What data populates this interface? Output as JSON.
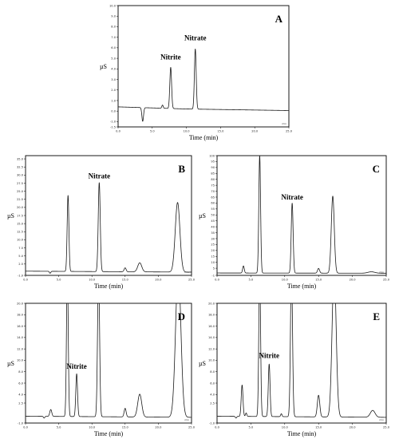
{
  "chart_data": [
    {
      "type": "line",
      "panel_label": "A",
      "xlabel": "Time (min)",
      "ylabel": "µS",
      "x_unit": "min",
      "xlim": [
        0.0,
        25.0
      ],
      "ylim": [
        -1.5,
        10.0
      ],
      "x_ticks": [
        "0.0",
        "5.0",
        "10.0",
        "15.0",
        "20.0",
        "25.0"
      ],
      "y_ticks": [
        "-1.5",
        "-1.0",
        "0.0",
        "1.0",
        "2.0",
        "3.0",
        "4.0",
        "5.0",
        "6.0",
        "7.0",
        "8.0",
        "9.0",
        "10.0"
      ],
      "baseline": [
        [
          0,
          0.4
        ],
        [
          2.5,
          0.35
        ],
        [
          5,
          0.3
        ],
        [
          10,
          0.2
        ],
        [
          15,
          0.15
        ],
        [
          20,
          0.1
        ],
        [
          25,
          0.05
        ]
      ],
      "peaks": [
        {
          "x": 3.6,
          "height": -1.3,
          "width": 0.12
        },
        {
          "x": 6.5,
          "height": 0.3,
          "width": 0.1
        },
        {
          "x": 7.7,
          "height": 3.9,
          "width": 0.13
        },
        {
          "x": 11.3,
          "height": 5.7,
          "width": 0.13
        }
      ],
      "annotations": [
        {
          "text": "Nitrite",
          "x": 7.7,
          "y": 4.9
        },
        {
          "text": "Nitrate",
          "x": 11.3,
          "y": 6.7
        }
      ]
    },
    {
      "type": "line",
      "panel_label": "B",
      "xlabel": "Time (min)",
      "ylabel": "µS",
      "x_unit": "min",
      "xlim": [
        0.0,
        25.0
      ],
      "ylim": [
        -1.0,
        36.0
      ],
      "x_ticks": [
        "0.0",
        "5.0",
        "10.0",
        "15.0",
        "20.0",
        "25.0"
      ],
      "y_ticks": [
        "-1.0",
        "2.5",
        "5.0",
        "7.5",
        "10.0",
        "12.5",
        "15.0",
        "17.5",
        "20.0",
        "22.5",
        "25.0",
        "27.5",
        "30.0",
        "32.5",
        "35.0"
      ],
      "baseline": [
        [
          0,
          0.3
        ],
        [
          25,
          0.0
        ]
      ],
      "peaks": [
        {
          "x": 3.7,
          "height": -0.6,
          "width": 0.1
        },
        {
          "x": 6.4,
          "height": 23.5,
          "width": 0.13
        },
        {
          "x": 11.1,
          "height": 27.5,
          "width": 0.15
        },
        {
          "x": 15.0,
          "height": 1.2,
          "width": 0.15
        },
        {
          "x": 17.2,
          "height": 2.8,
          "width": 0.3
        },
        {
          "x": 22.9,
          "height": 21.5,
          "width": 0.35
        }
      ],
      "annotations": [
        {
          "text": "Nitrate",
          "x": 11.1,
          "y": 29.0
        }
      ]
    },
    {
      "type": "line",
      "panel_label": "C",
      "xlabel": "Time (min)",
      "ylabel": "µS",
      "x_unit": "min",
      "xlim": [
        0.0,
        25.0
      ],
      "ylim": [
        -1,
        100
      ],
      "x_ticks": [
        "0.0",
        "5.0",
        "10.0",
        "15.0",
        "20.0",
        "25.0"
      ],
      "y_ticks": [
        "-1",
        "5",
        "10",
        "15",
        "20",
        "25",
        "30",
        "35",
        "40",
        "45",
        "50",
        "55",
        "60",
        "65",
        "70",
        "75",
        "80",
        "85",
        "90",
        "95",
        "100"
      ],
      "baseline": [
        [
          0,
          1.0
        ],
        [
          25,
          0.8
        ]
      ],
      "peaks": [
        {
          "x": 3.9,
          "height": 6.0,
          "width": 0.12
        },
        {
          "x": 6.3,
          "height": 99.0,
          "width": 0.13
        },
        {
          "x": 11.1,
          "height": 59.0,
          "width": 0.14
        },
        {
          "x": 15.0,
          "height": 4.0,
          "width": 0.15
        },
        {
          "x": 17.1,
          "height": 65.0,
          "width": 0.22
        },
        {
          "x": 22.8,
          "height": 1.2,
          "width": 0.5
        }
      ],
      "annotations": [
        {
          "text": "Nitrate",
          "x": 11.1,
          "y": 63.0
        }
      ]
    },
    {
      "type": "line",
      "panel_label": "D",
      "xlabel": "Time (min)",
      "ylabel": "µS",
      "x_unit": "min",
      "xlim": [
        0.0,
        25.0
      ],
      "ylim": [
        -1.0,
        20.0
      ],
      "x_ticks": [
        "0.0",
        "5.0",
        "10.0",
        "15.0",
        "20.0",
        "25.0"
      ],
      "y_ticks": [
        "-1.0",
        "2.5",
        "4.0",
        "6.0",
        "8.0",
        "10.0",
        "12.0",
        "14.0",
        "16.0",
        "18.0",
        "20.0"
      ],
      "baseline": [
        [
          0,
          0.2
        ],
        [
          25,
          0.0
        ]
      ],
      "peaks": [
        {
          "x": 2.8,
          "height": -0.3,
          "width": 0.1
        },
        {
          "x": 3.8,
          "height": 1.2,
          "width": 0.15
        },
        {
          "x": 6.3,
          "height": 26.0,
          "width": 0.13
        },
        {
          "x": 7.7,
          "height": 7.5,
          "width": 0.13
        },
        {
          "x": 11.0,
          "height": 26.0,
          "width": 0.15
        },
        {
          "x": 15.0,
          "height": 1.5,
          "width": 0.15
        },
        {
          "x": 17.2,
          "height": 4.0,
          "width": 0.3
        },
        {
          "x": 23.0,
          "height": 26.0,
          "width": 0.4
        }
      ],
      "annotations": [
        {
          "text": "Nitrite",
          "x": 7.7,
          "y": 8.5
        }
      ]
    },
    {
      "type": "line",
      "panel_label": "E",
      "xlabel": "Time (min)",
      "ylabel": "µS",
      "x_unit": "min",
      "xlim": [
        0.0,
        25.0
      ],
      "ylim": [
        -1.0,
        20.0
      ],
      "x_ticks": [
        "0.0",
        "5.0",
        "10.0",
        "15.0",
        "20.0",
        "25.0"
      ],
      "y_ticks": [
        "-1.0",
        "2.5",
        "4.0",
        "6.0",
        "8.0",
        "10.0",
        "12.0",
        "14.0",
        "16.0",
        "18.0",
        "20.0"
      ],
      "baseline": [
        [
          0,
          0.2
        ],
        [
          25,
          0.0
        ]
      ],
      "peaks": [
        {
          "x": 2.8,
          "height": -0.3,
          "width": 0.1
        },
        {
          "x": 3.7,
          "height": 5.5,
          "width": 0.13
        },
        {
          "x": 4.3,
          "height": 0.6,
          "width": 0.1
        },
        {
          "x": 6.3,
          "height": 26.0,
          "width": 0.13
        },
        {
          "x": 7.7,
          "height": 9.2,
          "width": 0.13
        },
        {
          "x": 9.5,
          "height": 0.5,
          "width": 0.1
        },
        {
          "x": 11.0,
          "height": 26.0,
          "width": 0.15
        },
        {
          "x": 15.0,
          "height": 3.8,
          "width": 0.18
        },
        {
          "x": 17.3,
          "height": 26.0,
          "width": 0.3
        },
        {
          "x": 23.0,
          "height": 1.2,
          "width": 0.35
        }
      ],
      "annotations": [
        {
          "text": "Nitrite",
          "x": 7.7,
          "y": 10.4
        }
      ]
    }
  ]
}
